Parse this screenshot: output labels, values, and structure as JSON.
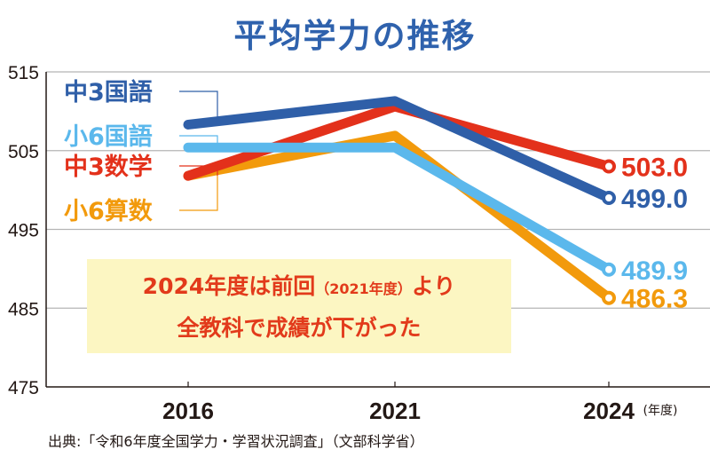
{
  "chart_data": {
    "type": "line",
    "title": "平均学力の推移",
    "categories": [
      "2016",
      "2021",
      "2024"
    ],
    "x_unit": "(年度)",
    "ylim": [
      475,
      515
    ],
    "yticks": [
      475,
      485,
      495,
      505,
      515
    ],
    "grid": true,
    "legend_placement": "left",
    "series": [
      {
        "name": "中3国語",
        "color": "#2f5fa8",
        "values": [
          508.3,
          511.3,
          499.0
        ],
        "end_label": "499.0"
      },
      {
        "name": "小6国語",
        "color": "#5bb8ec",
        "values": [
          505.4,
          505.4,
          489.9
        ],
        "end_label": "489.9"
      },
      {
        "name": "中3数学",
        "color": "#e3311b",
        "values": [
          501.8,
          510.6,
          503.0
        ],
        "end_label": "503.0"
      },
      {
        "name": "小6算数",
        "color": "#f29a0c",
        "values": [
          501.8,
          506.9,
          486.3
        ],
        "end_label": "486.3"
      }
    ],
    "annotation": {
      "line1_a": "2024年度は前回",
      "line1_b": "（2021年度）",
      "line1_c": "より",
      "line2": "全教科で成績が下がった"
    },
    "source": "出典:「令和6年度全国学力・学習状況調査」（文部科学省）"
  }
}
